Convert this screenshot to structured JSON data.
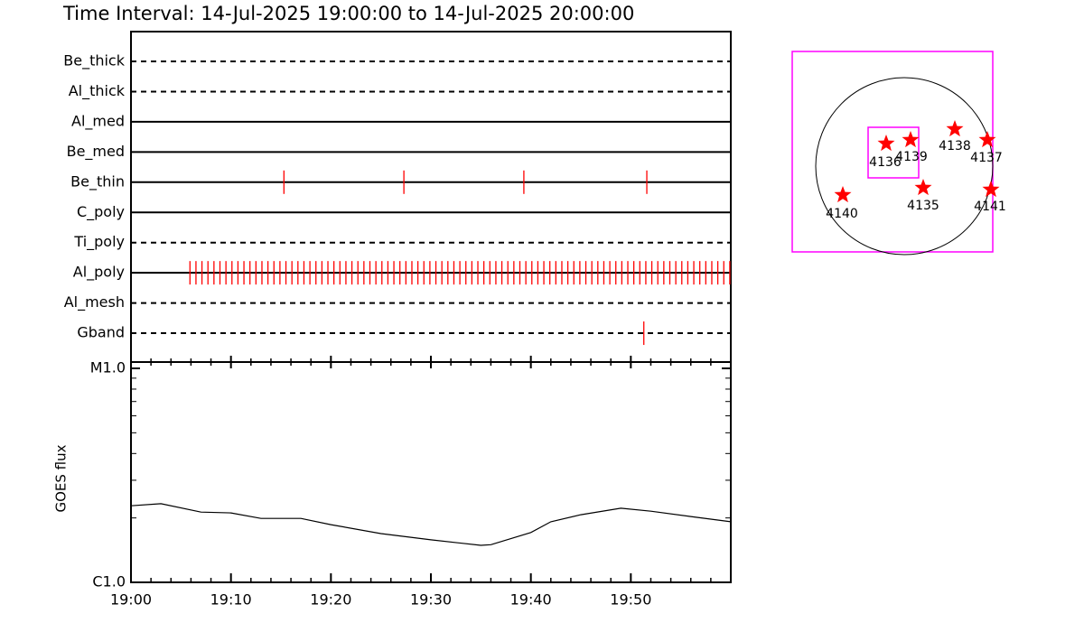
{
  "title": "Time Interval: 14-Jul-2025 19:00:00 to 14-Jul-2025 20:00:00",
  "timeline": {
    "xlim": [
      0,
      60
    ],
    "xticks": [
      {
        "value": 0,
        "label": "19:00"
      },
      {
        "value": 10,
        "label": "19:10"
      },
      {
        "value": 20,
        "label": "19:20"
      },
      {
        "value": 30,
        "label": "19:30"
      },
      {
        "value": 40,
        "label": "19:40"
      },
      {
        "value": 50,
        "label": "19:50"
      }
    ],
    "xminor_ticks": [
      2,
      4,
      6,
      8,
      12,
      14,
      16,
      18,
      22,
      24,
      26,
      28,
      32,
      34,
      36,
      38,
      42,
      44,
      46,
      48,
      52,
      54,
      56,
      58
    ],
    "event_color": "#ff0000",
    "filters": [
      {
        "name": "Be_thick",
        "style": "dashed",
        "events": []
      },
      {
        "name": "Al_thick",
        "style": "dashed",
        "events": []
      },
      {
        "name": "Al_med",
        "style": "solid",
        "events": []
      },
      {
        "name": "Be_med",
        "style": "solid",
        "events": []
      },
      {
        "name": "Be_thin",
        "style": "solid",
        "events": [
          15.3,
          27.3,
          39.3,
          51.6
        ]
      },
      {
        "name": "C_poly",
        "style": "solid",
        "events": []
      },
      {
        "name": "Ti_poly",
        "style": "dashed",
        "events": []
      },
      {
        "name": "Al_poly",
        "style": "solid",
        "events": [
          5.9,
          6.5,
          7.1,
          7.7,
          8.3,
          8.9,
          9.5,
          10.1,
          10.7,
          11.3,
          11.9,
          12.5,
          13.1,
          13.7,
          14.3,
          14.9,
          15.5,
          16.1,
          16.7,
          17.3,
          17.9,
          18.5,
          19.1,
          19.7,
          20.3,
          20.9,
          21.5,
          22.1,
          22.7,
          23.3,
          23.9,
          24.5,
          25.1,
          25.7,
          26.3,
          26.9,
          27.5,
          28.1,
          28.7,
          29.3,
          29.9,
          30.5,
          31.1,
          31.7,
          32.3,
          32.9,
          33.5,
          34.1,
          34.7,
          35.3,
          35.9,
          36.5,
          37.1,
          37.7,
          38.3,
          38.9,
          39.5,
          40.1,
          40.7,
          41.3,
          41.9,
          42.5,
          43.1,
          43.7,
          44.3,
          44.9,
          45.5,
          46.1,
          46.7,
          47.3,
          47.9,
          48.5,
          49.1,
          49.7,
          50.3,
          50.9,
          51.5,
          52.1,
          52.7,
          53.3,
          53.9,
          54.5,
          55.1,
          55.7,
          56.3,
          56.9,
          57.5,
          58.1,
          58.7,
          59.3,
          59.9
        ]
      },
      {
        "name": "Al_mesh",
        "style": "dashed",
        "events": []
      },
      {
        "name": "Gband",
        "style": "dashed",
        "events": [
          51.3
        ]
      }
    ]
  },
  "goes": {
    "type": "line",
    "ylabel": "GOES flux",
    "log_scale": true,
    "color": "#000000",
    "ylim": [
      1e-06,
      1e-05
    ],
    "yticks": [
      {
        "value": 1e-05,
        "label": "M1.0"
      },
      {
        "value": 1e-06,
        "label": "C1.0"
      }
    ],
    "yminor_ticks": [
      2e-06,
      3e-06,
      4e-06,
      5e-06,
      6e-06,
      7e-06,
      8e-06,
      9e-06
    ],
    "x": [
      0,
      3,
      7,
      10,
      13,
      17,
      20,
      25,
      30,
      35,
      36,
      40,
      42,
      45,
      49,
      52,
      56,
      60
    ],
    "values": [
      2.28e-06,
      2.33e-06,
      2.13e-06,
      2.11e-06,
      1.99e-06,
      1.99e-06,
      1.86e-06,
      1.69e-06,
      1.58e-06,
      1.49e-06,
      1.5e-06,
      1.71e-06,
      1.92e-06,
      2.07e-06,
      2.22e-06,
      2.15e-06,
      2.03e-06,
      1.92e-06
    ]
  },
  "map": {
    "regions": [
      "4136",
      "4139",
      "4138",
      "4137",
      "4135",
      "4140",
      "4141"
    ]
  }
}
